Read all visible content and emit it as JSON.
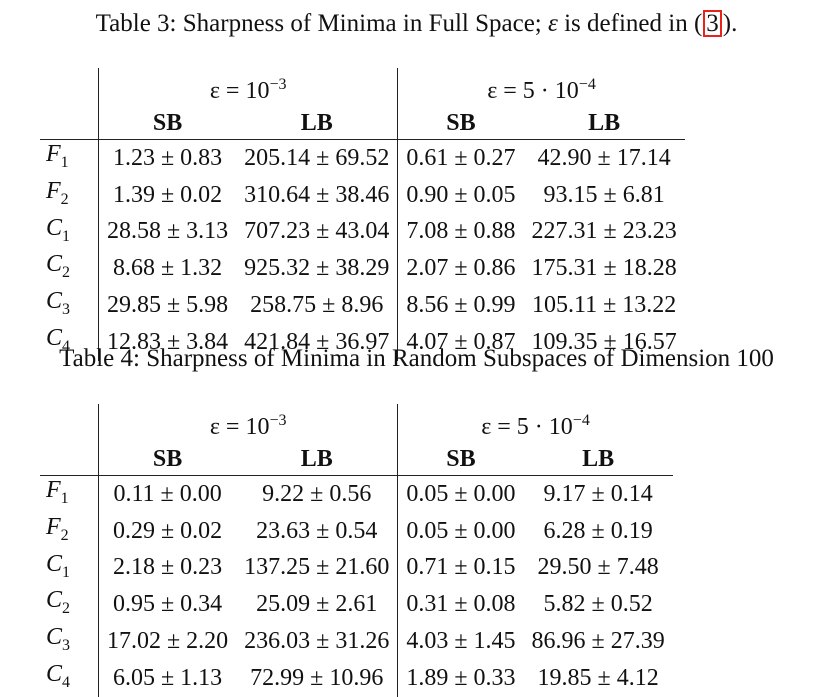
{
  "table3": {
    "caption_prefix": "Table 3: Sharpness of Minima in Full Space;",
    "caption_eps": "ε",
    "caption_middle": " is defined in (",
    "caption_ref": "3",
    "caption_suffix": ").",
    "groups": [
      {
        "lhs": "ε = 10",
        "exp": "−3"
      },
      {
        "lhs": "ε = 5 · 10",
        "exp": "−4"
      }
    ],
    "columns": [
      "SB",
      "LB",
      "SB",
      "LB"
    ],
    "rows": [
      {
        "name": "F",
        "sub": "1",
        "cells": [
          "1.23 ± 0.83",
          "205.14 ± 69.52",
          "0.61 ± 0.27",
          "42.90 ± 17.14"
        ]
      },
      {
        "name": "F",
        "sub": "2",
        "cells": [
          "1.39 ± 0.02",
          "310.64 ± 38.46",
          "0.90 ± 0.05",
          "93.15 ± 6.81"
        ]
      },
      {
        "name": "C",
        "sub": "1",
        "cells": [
          "28.58 ± 3.13",
          "707.23 ± 43.04",
          "7.08 ± 0.88",
          "227.31 ± 23.23"
        ]
      },
      {
        "name": "C",
        "sub": "2",
        "cells": [
          "8.68 ± 1.32",
          "925.32 ± 38.29",
          "2.07 ± 0.86",
          "175.31 ± 18.28"
        ]
      },
      {
        "name": "C",
        "sub": "3",
        "cells": [
          "29.85 ± 5.98",
          "258.75 ± 8.96",
          "8.56 ± 0.99",
          "105.11 ± 13.22"
        ]
      },
      {
        "name": "C",
        "sub": "4",
        "cells": [
          "12.83 ± 3.84",
          "421.84 ± 36.97",
          "4.07 ± 0.87",
          "109.35 ± 16.57"
        ]
      }
    ]
  },
  "table4": {
    "caption": "Table 4: Sharpness of Minima in Random Subspaces of Dimension 100",
    "groups": [
      {
        "lhs": "ε = 10",
        "exp": "−3"
      },
      {
        "lhs": "ε = 5 · 10",
        "exp": "−4"
      }
    ],
    "columns": [
      "SB",
      "LB",
      "SB",
      "LB"
    ],
    "rows": [
      {
        "name": "F",
        "sub": "1",
        "cells": [
          "0.11 ± 0.00",
          "9.22 ± 0.56",
          "0.05 ± 0.00",
          "9.17 ± 0.14"
        ]
      },
      {
        "name": "F",
        "sub": "2",
        "cells": [
          "0.29 ± 0.02",
          "23.63 ± 0.54",
          "0.05 ± 0.00",
          "6.28 ± 0.19"
        ]
      },
      {
        "name": "C",
        "sub": "1",
        "cells": [
          "2.18 ± 0.23",
          "137.25 ± 21.60",
          "0.71 ± 0.15",
          "29.50 ± 7.48"
        ]
      },
      {
        "name": "C",
        "sub": "2",
        "cells": [
          "0.95 ± 0.34",
          "25.09 ± 2.61",
          "0.31 ± 0.08",
          "5.82 ± 0.52"
        ]
      },
      {
        "name": "C",
        "sub": "3",
        "cells": [
          "17.02 ± 2.20",
          "236.03 ± 31.26",
          "4.03 ± 1.45",
          "86.96 ± 27.39"
        ]
      },
      {
        "name": "C",
        "sub": "4",
        "cells": [
          "6.05 ± 1.13",
          "72.99 ± 10.96",
          "1.89 ± 0.33",
          "19.85 ± 4.12"
        ]
      }
    ]
  },
  "colors": {
    "text": "#111111",
    "rule": "#222222",
    "ref_box": "#e8231a"
  }
}
